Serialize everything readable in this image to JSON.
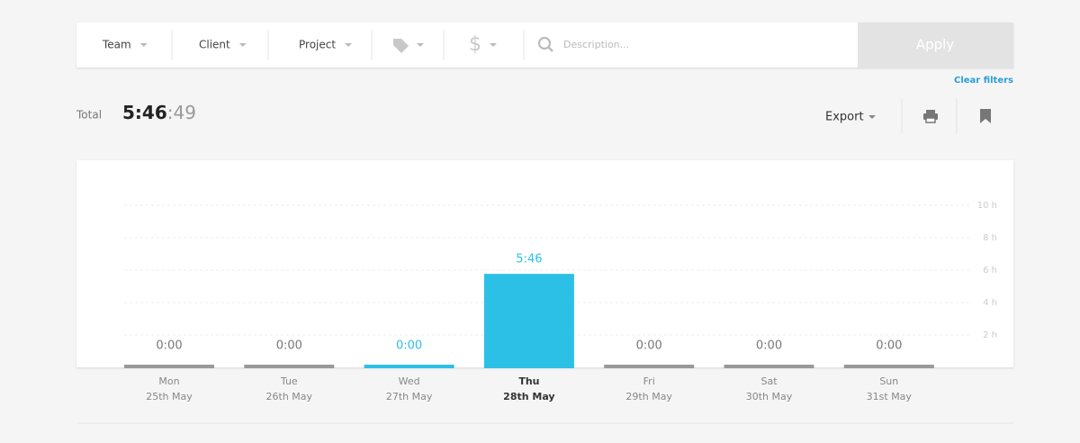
{
  "filters": {
    "items": [
      "Team",
      "Client",
      "Project"
    ],
    "billable_icon": "$",
    "search_placeholder": "Description...",
    "apply": "Apply",
    "clear": "Clear filters"
  },
  "summary": {
    "label": "Total",
    "hours_minutes": "5:46",
    "seconds": ":49"
  },
  "toolbar": {
    "export": "Export"
  },
  "chart_data": {
    "type": "bar",
    "categories": [
      "Mon",
      "Tue",
      "Wed",
      "Thu",
      "Fri",
      "Sat",
      "Sun"
    ],
    "subcategories": [
      "25th May",
      "26th May",
      "27th May",
      "28th May",
      "29th May",
      "30th May",
      "31st May"
    ],
    "values": [
      0,
      0,
      0,
      5.77,
      0,
      0,
      0
    ],
    "value_labels": [
      "0:00",
      "0:00",
      "0:00",
      "5:46",
      "0:00",
      "0:00",
      "0:00"
    ],
    "colors": [
      "#999999",
      "#999999",
      "#2dc0e6",
      "#2dc0e6",
      "#999999",
      "#999999",
      "#999999"
    ],
    "highlight_index": 3,
    "ylim": [
      0,
      10
    ],
    "yticks": [
      {
        "value": 2,
        "label": "2 h"
      },
      {
        "value": 4,
        "label": "4 h"
      },
      {
        "value": 6,
        "label": "6 h"
      },
      {
        "value": 8,
        "label": "8 h"
      },
      {
        "value": 10,
        "label": "10 h"
      }
    ],
    "grid": true
  }
}
